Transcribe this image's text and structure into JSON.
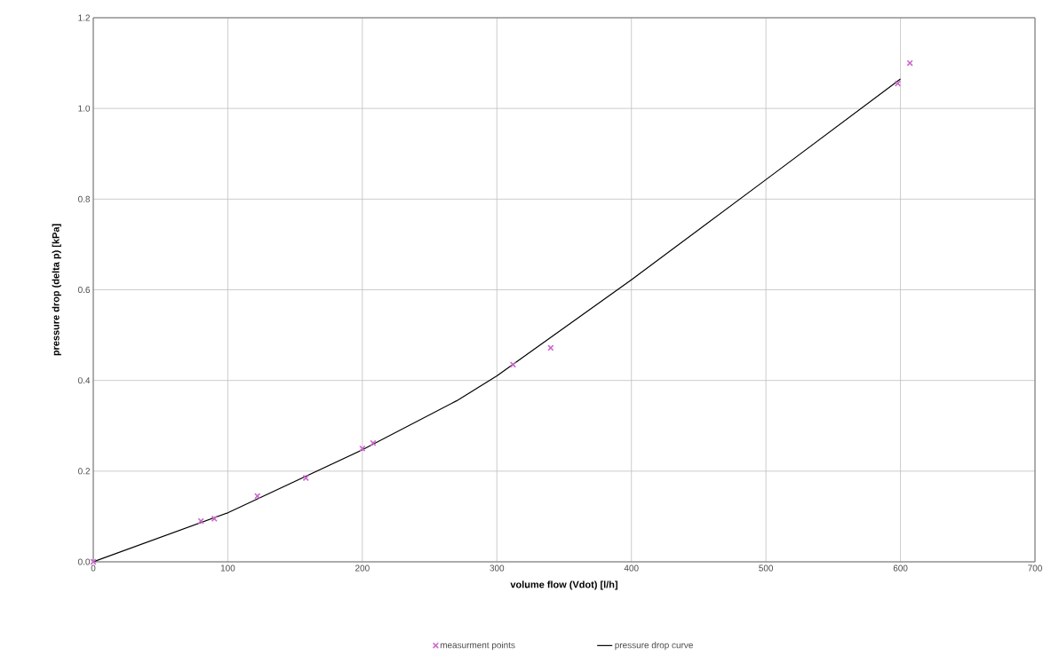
{
  "chart_data": {
    "type": "scatter",
    "xlabel": "volume flow (Vdot) [l/h]",
    "ylabel": "pressure drop (delta p) [kPa]",
    "xlim": [
      0,
      700
    ],
    "ylim": [
      0,
      1.2
    ],
    "xticks": [
      0,
      100,
      200,
      300,
      400,
      500,
      600,
      700
    ],
    "yticks": [
      {
        "value": 0,
        "label": "0.0"
      },
      {
        "value": 0.2,
        "label": "0.2"
      },
      {
        "value": 0.4,
        "label": "0.4"
      },
      {
        "value": 0.6,
        "label": "0.6"
      },
      {
        "value": 0.8,
        "label": "0.8"
      },
      {
        "value": 1.0,
        "label": "1.0"
      },
      {
        "value": 1.2,
        "label": "1.2"
      }
    ],
    "grid": true,
    "legend": "bottom",
    "series": [
      {
        "name": "measurment points",
        "color": "#cc66cc",
        "marker": "cross",
        "x": [
          0,
          80,
          90,
          122,
          158,
          200,
          208,
          312,
          340,
          598,
          607
        ],
        "values": [
          0,
          0.09,
          0.095,
          0.145,
          0.185,
          0.25,
          0.262,
          0.435,
          0.472,
          1.055,
          1.1
        ]
      },
      {
        "name": "pressure drop curve",
        "type": "line",
        "color": "#000000",
        "marker": "none",
        "line_style": "solid",
        "x": [
          0,
          100,
          200,
          270,
          300,
          400,
          500,
          600
        ],
        "values": [
          0,
          0.108,
          0.247,
          0.355,
          0.41,
          0.622,
          0.843,
          1.065
        ]
      }
    ]
  }
}
